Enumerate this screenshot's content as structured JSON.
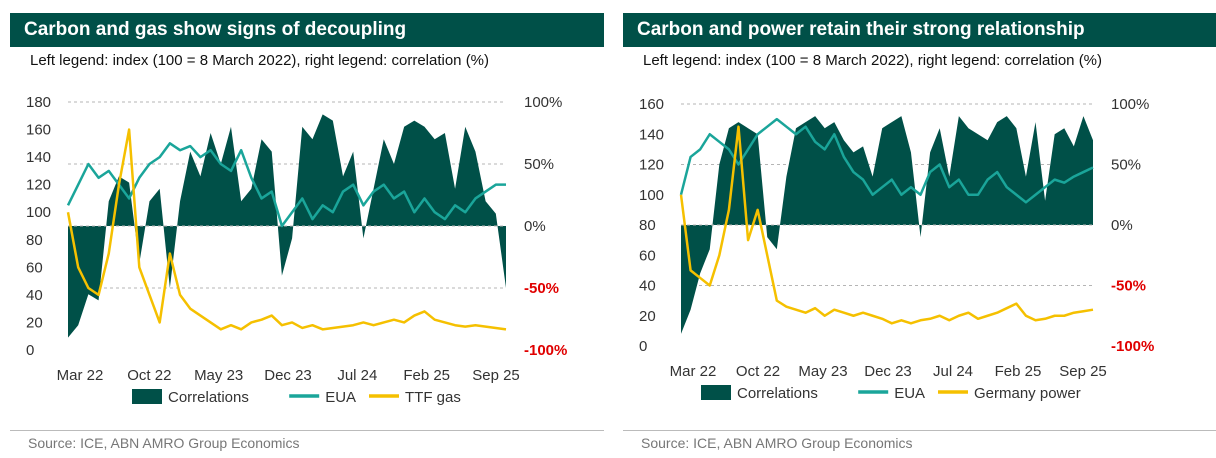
{
  "colors": {
    "corr": "#005048",
    "eua": "#1aa59a",
    "other": "#f5c000",
    "grid": "#b5b5b5",
    "red": "#e00000",
    "text": "#333333"
  },
  "left": {
    "title": "Carbon and gas show signs of decoupling",
    "subtitle": "Left legend: index (100 = 8 March 2022), right legend: correlation (%)",
    "source": "Source: ICE, ABN AMRO Group Economics",
    "legend": [
      "Correlations",
      "EUA",
      "TTF gas"
    ]
  },
  "right": {
    "title": "Carbon and power retain their strong relationship",
    "subtitle": "Left legend: index (100 = 8 March 2022), right legend: correlation (%)",
    "source": "Source: ICE, ABN AMRO Group Economics",
    "legend": [
      "Correlations",
      "EUA",
      "Germany power"
    ]
  },
  "chart_data": [
    {
      "type": "line",
      "title": "Carbon and gas show signs of decoupling",
      "x_ticks": [
        "Mar 22",
        "Oct 22",
        "May 23",
        "Dec 23",
        "Jul 24",
        "Feb 25",
        "Sep 25"
      ],
      "x_range": [
        0,
        43
      ],
      "y_left": {
        "ticks": [
          0,
          20,
          40,
          60,
          80,
          100,
          120,
          140,
          160,
          180
        ],
        "range": [
          0,
          180
        ]
      },
      "y_right": {
        "ticks": [
          "100%",
          "50%",
          "0%",
          "-50%",
          "-100%"
        ],
        "values": [
          100,
          50,
          0,
          -50,
          -100
        ],
        "range": [
          -100,
          100
        ]
      },
      "series": [
        {
          "name": "Correlations",
          "axis": "right",
          "kind": "area",
          "x": [
            0,
            1,
            2,
            3,
            4,
            5,
            6,
            7,
            8,
            9,
            10,
            11,
            12,
            13,
            14,
            15,
            16,
            17,
            18,
            19,
            20,
            21,
            22,
            23,
            24,
            25,
            26,
            27,
            28,
            29,
            30,
            31,
            32,
            33,
            34,
            35,
            36,
            37,
            38,
            39,
            40,
            41,
            42,
            43
          ],
          "y": [
            -90,
            -80,
            -55,
            -60,
            20,
            40,
            35,
            -30,
            20,
            30,
            -50,
            20,
            60,
            40,
            75,
            50,
            80,
            20,
            30,
            70,
            60,
            -40,
            -10,
            80,
            70,
            90,
            85,
            40,
            60,
            -10,
            30,
            70,
            50,
            80,
            85,
            80,
            70,
            75,
            30,
            80,
            60,
            20,
            10,
            -50
          ]
        },
        {
          "name": "EUA",
          "axis": "left",
          "kind": "line",
          "x": [
            0,
            1,
            2,
            3,
            4,
            5,
            6,
            7,
            8,
            9,
            10,
            11,
            12,
            13,
            14,
            15,
            16,
            17,
            18,
            19,
            20,
            21,
            22,
            23,
            24,
            25,
            26,
            27,
            28,
            29,
            30,
            31,
            32,
            33,
            34,
            35,
            36,
            37,
            38,
            39,
            40,
            41,
            42,
            43
          ],
          "y": [
            105,
            120,
            135,
            125,
            130,
            120,
            110,
            125,
            135,
            140,
            150,
            145,
            148,
            140,
            145,
            135,
            130,
            145,
            125,
            110,
            115,
            90,
            100,
            110,
            95,
            105,
            100,
            115,
            120,
            105,
            115,
            120,
            110,
            115,
            100,
            110,
            100,
            95,
            105,
            100,
            110,
            115,
            120,
            120
          ]
        },
        {
          "name": "TTF gas",
          "axis": "left",
          "kind": "line",
          "x": [
            0,
            1,
            2,
            3,
            4,
            5,
            6,
            7,
            8,
            9,
            10,
            11,
            12,
            13,
            14,
            15,
            16,
            17,
            18,
            19,
            20,
            21,
            22,
            23,
            24,
            25,
            26,
            27,
            28,
            29,
            30,
            31,
            32,
            33,
            34,
            35,
            36,
            37,
            38,
            39,
            40,
            41,
            42,
            43
          ],
          "y": [
            100,
            60,
            45,
            40,
            70,
            120,
            160,
            60,
            40,
            20,
            70,
            40,
            30,
            25,
            20,
            15,
            18,
            15,
            20,
            22,
            25,
            18,
            20,
            16,
            18,
            15,
            16,
            17,
            18,
            20,
            18,
            20,
            22,
            20,
            25,
            28,
            22,
            20,
            18,
            17,
            18,
            17,
            16,
            15
          ]
        }
      ]
    },
    {
      "type": "line",
      "title": "Carbon and power retain their strong relationship",
      "x_ticks": [
        "Mar 22",
        "Oct 22",
        "May 23",
        "Dec 23",
        "Jul 24",
        "Feb 25",
        "Sep 25"
      ],
      "x_range": [
        0,
        43
      ],
      "y_left": {
        "ticks": [
          0,
          20,
          40,
          60,
          80,
          100,
          120,
          140,
          160
        ],
        "range": [
          0,
          160
        ]
      },
      "y_right": {
        "ticks": [
          "100%",
          "50%",
          "0%",
          "-50%",
          "-100%"
        ],
        "values": [
          100,
          50,
          0,
          -50,
          -100
        ],
        "range": [
          -100,
          100
        ]
      },
      "series": [
        {
          "name": "Correlations",
          "axis": "right",
          "kind": "area",
          "x": [
            0,
            1,
            2,
            3,
            4,
            5,
            6,
            7,
            8,
            9,
            10,
            11,
            12,
            13,
            14,
            15,
            16,
            17,
            18,
            19,
            20,
            21,
            22,
            23,
            24,
            25,
            26,
            27,
            28,
            29,
            30,
            31,
            32,
            33,
            34,
            35,
            36,
            37,
            38,
            39,
            40,
            41,
            42,
            43
          ],
          "y": [
            -90,
            -70,
            -40,
            -20,
            50,
            80,
            85,
            80,
            75,
            -10,
            -20,
            40,
            80,
            85,
            90,
            80,
            85,
            70,
            60,
            65,
            40,
            80,
            85,
            90,
            60,
            -10,
            60,
            80,
            40,
            90,
            80,
            75,
            70,
            85,
            90,
            80,
            40,
            85,
            20,
            75,
            80,
            65,
            90,
            70
          ]
        },
        {
          "name": "EUA",
          "axis": "left",
          "kind": "line",
          "x": [
            0,
            1,
            2,
            3,
            4,
            5,
            6,
            7,
            8,
            9,
            10,
            11,
            12,
            13,
            14,
            15,
            16,
            17,
            18,
            19,
            20,
            21,
            22,
            23,
            24,
            25,
            26,
            27,
            28,
            29,
            30,
            31,
            32,
            33,
            34,
            35,
            36,
            37,
            38,
            39,
            40,
            41,
            42,
            43
          ],
          "y": [
            100,
            125,
            130,
            140,
            135,
            130,
            120,
            130,
            140,
            145,
            150,
            145,
            140,
            145,
            135,
            130,
            140,
            125,
            115,
            110,
            100,
            105,
            110,
            100,
            105,
            100,
            115,
            120,
            105,
            110,
            100,
            100,
            110,
            115,
            105,
            100,
            95,
            100,
            105,
            110,
            108,
            112,
            115,
            118
          ]
        },
        {
          "name": "Germany power",
          "axis": "left",
          "kind": "line",
          "x": [
            0,
            1,
            2,
            3,
            4,
            5,
            6,
            7,
            8,
            9,
            10,
            11,
            12,
            13,
            14,
            15,
            16,
            17,
            18,
            19,
            20,
            21,
            22,
            23,
            24,
            25,
            26,
            27,
            28,
            29,
            30,
            31,
            32,
            33,
            34,
            35,
            36,
            37,
            38,
            39,
            40,
            41,
            42,
            43
          ],
          "y": [
            100,
            50,
            45,
            40,
            60,
            90,
            145,
            70,
            90,
            60,
            30,
            26,
            24,
            22,
            25,
            20,
            24,
            22,
            20,
            22,
            20,
            18,
            15,
            17,
            15,
            17,
            18,
            20,
            17,
            20,
            22,
            18,
            20,
            22,
            25,
            28,
            20,
            17,
            18,
            20,
            20,
            22,
            23,
            24
          ]
        }
      ]
    }
  ]
}
